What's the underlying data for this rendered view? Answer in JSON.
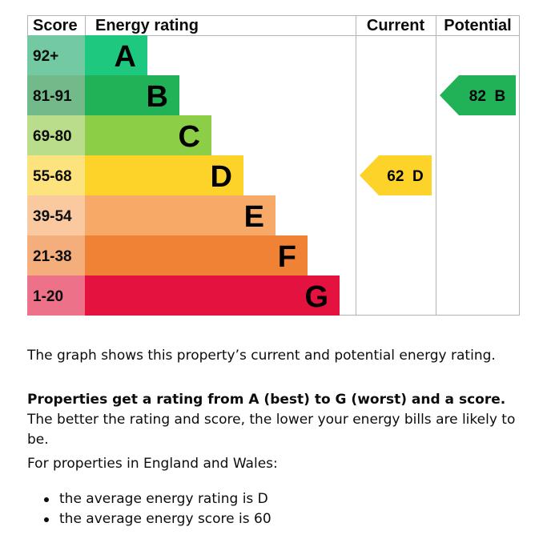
{
  "chart_data": {
    "type": "bar",
    "headers": {
      "score": "Score",
      "rating": "Energy rating",
      "current": "Current",
      "potential": "Potential"
    },
    "bands": [
      {
        "letter": "A",
        "range": "92+",
        "color": "#1ec97f",
        "score_color": "#72c9a2"
      },
      {
        "letter": "B",
        "range": "81-91",
        "color": "#21b258",
        "score_color": "#73ba8b"
      },
      {
        "letter": "C",
        "range": "69-80",
        "color": "#8cce46",
        "score_color": "#b9dd8b"
      },
      {
        "letter": "D",
        "range": "55-68",
        "color": "#fdd32a",
        "score_color": "#fde37d"
      },
      {
        "letter": "E",
        "range": "39-54",
        "color": "#f7aa68",
        "score_color": "#fac99f"
      },
      {
        "letter": "F",
        "range": "21-38",
        "color": "#ef8234",
        "score_color": "#f4ae7c"
      },
      {
        "letter": "G",
        "range": "1-20",
        "color": "#e3123e",
        "score_color": "#ec7189"
      }
    ],
    "current": {
      "score": 62,
      "band": "D",
      "label": "62  D",
      "color": "#fdd32a"
    },
    "potential": {
      "score": 82,
      "band": "B",
      "label": "82  B",
      "color": "#21b258"
    }
  },
  "explanation": "The graph shows this property’s current and potential energy rating.",
  "rating_info": {
    "bold": "Properties get a rating from A (best) to G (worst) and a score.",
    "rest": " The better the rating and score, the lower your energy bills are likely to be."
  },
  "region_intro": "For properties in England and Wales:",
  "averages": [
    "the average energy rating is D",
    "the average energy score is 60"
  ]
}
